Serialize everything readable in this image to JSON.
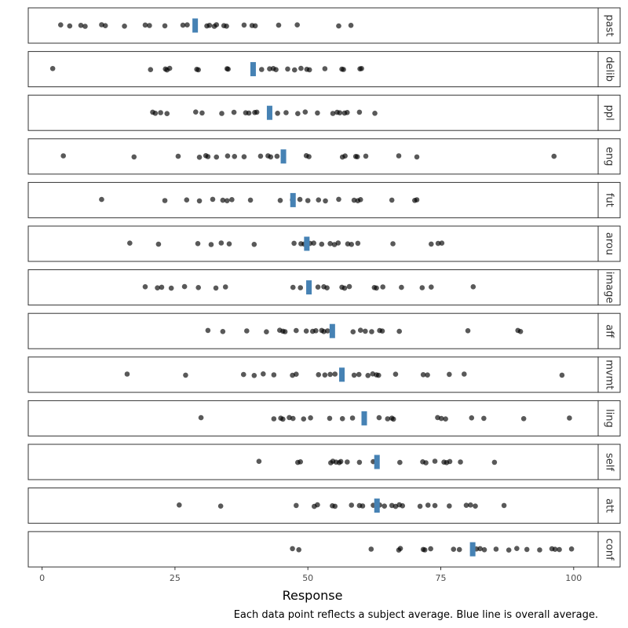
{
  "chart_data": {
    "type": "scatter",
    "xlabel": "Response",
    "xlim": [
      -5,
      105
    ],
    "x_ticks": [
      0,
      25,
      50,
      75,
      100
    ],
    "x_tick_labels": [
      "0",
      "25",
      "50",
      "75",
      "100"
    ],
    "caption": "Each data point reflects a subject average. Blue line is overall average.",
    "colors": {
      "points": "#000000",
      "mean_line": "#4682b4",
      "panel_border": "#333333",
      "strip_fill": "#ffffff"
    },
    "panels": [
      {
        "label": "past",
        "mean": 28.8,
        "points": [
          3.5,
          5.2,
          7.3,
          8.1,
          11.2,
          11.9,
          15.5,
          19.4,
          20.2,
          23.1,
          26.5,
          27.3,
          31.0,
          31.5,
          32.4,
          32.8,
          34.2,
          34.7,
          38.0,
          39.5,
          40.1,
          44.5,
          48.0,
          55.8,
          58.1
        ]
      },
      {
        "label": "delib",
        "mean": 39.7,
        "points": [
          2.0,
          20.4,
          23.2,
          23.5,
          24.0,
          29.1,
          29.4,
          34.8,
          35.0,
          41.3,
          42.8,
          43.5,
          44.0,
          46.2,
          47.5,
          48.7,
          49.8,
          50.3,
          53.2,
          56.4,
          56.7,
          59.8,
          60.1
        ]
      },
      {
        "label": "ppl",
        "mean": 42.8,
        "points": [
          20.8,
          21.3,
          22.3,
          23.5,
          28.9,
          30.1,
          33.8,
          36.1,
          38.3,
          38.9,
          40.0,
          40.4,
          44.3,
          45.9,
          48.1,
          49.5,
          51.8,
          54.7,
          55.5,
          56.0,
          56.9,
          57.4,
          59.7,
          62.6
        ]
      },
      {
        "label": "eng",
        "mean": 45.4,
        "points": [
          4.0,
          17.3,
          25.6,
          29.6,
          30.8,
          31.2,
          32.8,
          34.9,
          36.2,
          38.0,
          41.1,
          42.5,
          43.0,
          44.2,
          45.4,
          49.7,
          50.2,
          56.5,
          57.0,
          59.0,
          59.3,
          60.9,
          67.1,
          70.5,
          96.3
        ]
      },
      {
        "label": "fut",
        "mean": 47.2,
        "points": [
          11.2,
          23.1,
          27.2,
          29.6,
          32.1,
          34.0,
          34.8,
          35.7,
          39.2,
          44.8,
          47.1,
          48.5,
          50.0,
          52.0,
          53.3,
          55.8,
          58.7,
          59.4,
          59.9,
          65.8,
          70.1,
          70.5
        ]
      },
      {
        "label": "arou",
        "mean": 49.8,
        "points": [
          16.5,
          21.9,
          29.3,
          31.8,
          33.7,
          35.2,
          39.9,
          47.4,
          48.7,
          49.3,
          50.4,
          51.1,
          52.6,
          54.2,
          55.0,
          55.7,
          57.5,
          58.2,
          59.4,
          66.0,
          73.2,
          74.5,
          75.2
        ]
      },
      {
        "label": "image",
        "mean": 50.2,
        "points": [
          19.4,
          21.7,
          22.5,
          24.3,
          26.8,
          29.4,
          32.7,
          34.5,
          47.2,
          48.6,
          51.9,
          53.0,
          53.6,
          56.4,
          56.9,
          57.8,
          62.5,
          62.9,
          64.1,
          67.6,
          71.5,
          73.2,
          81.1
        ]
      },
      {
        "label": "aff",
        "mean": 54.6,
        "points": [
          31.2,
          34.0,
          38.5,
          42.2,
          44.7,
          45.3,
          45.7,
          47.8,
          49.7,
          50.9,
          51.5,
          52.6,
          53.0,
          53.7,
          58.5,
          59.9,
          60.8,
          62.0,
          63.5,
          64.0,
          67.2,
          80.1,
          89.5,
          90.0
        ]
      },
      {
        "label": "mvmt",
        "mean": 56.4,
        "points": [
          16.0,
          27.0,
          37.9,
          39.9,
          41.6,
          43.6,
          47.1,
          47.8,
          52.0,
          53.2,
          54.2,
          55.1,
          58.7,
          59.6,
          61.3,
          62.2,
          62.9,
          63.3,
          66.5,
          71.7,
          72.5,
          76.6,
          79.4,
          97.8
        ]
      },
      {
        "label": "ling",
        "mean": 60.6,
        "points": [
          29.9,
          43.6,
          44.9,
          45.3,
          46.5,
          47.2,
          49.2,
          50.5,
          54.1,
          56.5,
          58.4,
          63.4,
          65.0,
          65.8,
          66.1,
          74.4,
          75.1,
          75.9,
          80.8,
          83.1,
          90.6,
          99.2
        ]
      },
      {
        "label": "self",
        "mean": 63.0,
        "points": [
          40.8,
          48.1,
          48.6,
          54.3,
          54.7,
          55.3,
          55.9,
          56.2,
          57.4,
          59.7,
          62.3,
          62.9,
          67.3,
          71.6,
          72.2,
          73.9,
          75.6,
          76.1,
          76.7,
          78.7,
          85.1
        ]
      },
      {
        "label": "att",
        "mean": 63.0,
        "points": [
          25.8,
          33.6,
          47.8,
          51.2,
          51.8,
          54.6,
          55.1,
          58.2,
          59.7,
          60.3,
          62.3,
          63.5,
          64.4,
          65.8,
          66.5,
          67.2,
          67.8,
          71.1,
          72.6,
          73.9,
          76.6,
          79.8,
          80.6,
          81.5,
          86.9
        ]
      },
      {
        "label": "conf",
        "mean": 81.0,
        "points": [
          47.1,
          48.3,
          61.9,
          67.1,
          67.4,
          71.7,
          72.0,
          73.1,
          77.4,
          78.5,
          81.7,
          82.4,
          83.2,
          85.4,
          87.8,
          89.3,
          91.2,
          93.6,
          95.9,
          96.5,
          97.3,
          99.6
        ]
      }
    ]
  }
}
